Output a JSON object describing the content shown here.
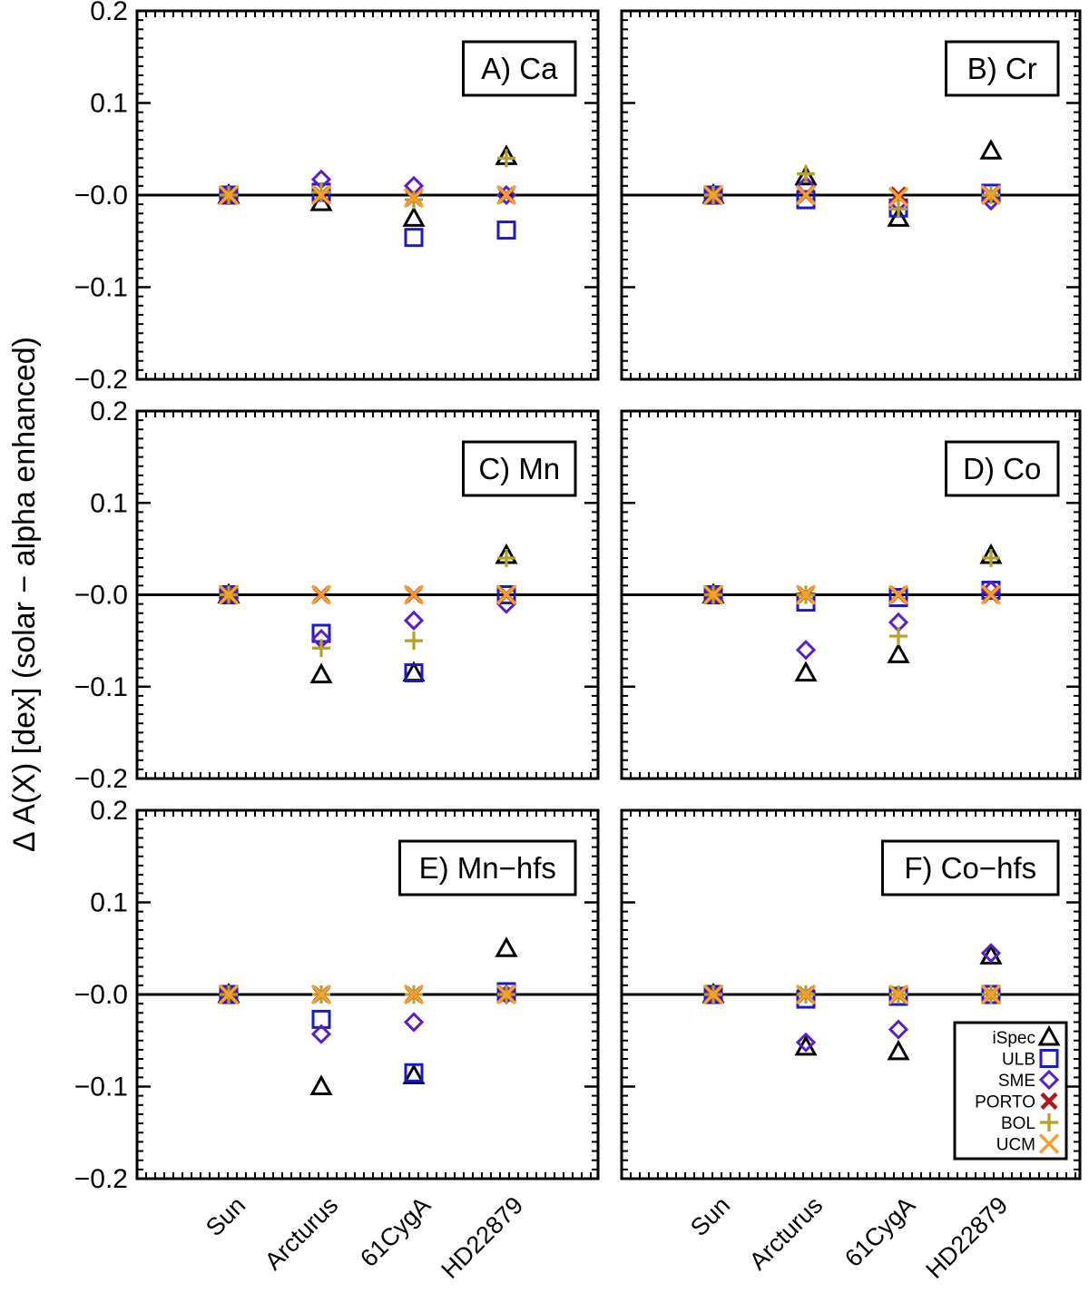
{
  "figure": {
    "ylabel": "Δ A(X) [dex] (solar − alpha enhanced)",
    "xlabels": [
      "Sun",
      "Arcturus",
      "61CygA",
      "HD22879"
    ]
  },
  "legend": [
    {
      "name": "iSpec",
      "marker": "triangle",
      "color": "#000000"
    },
    {
      "name": "ULB",
      "marker": "square",
      "color": "#1a1ac8"
    },
    {
      "name": "SME",
      "marker": "diamond",
      "color": "#5a1ec8"
    },
    {
      "name": "PORTO",
      "marker": "x-bold",
      "color": "#b01818"
    },
    {
      "name": "BOL",
      "marker": "plus",
      "color": "#b8a020"
    },
    {
      "name": "UCM",
      "marker": "x",
      "color": "#f5a030"
    }
  ],
  "chart_data": [
    {
      "type": "scatter",
      "panel": "A) Ca",
      "categories": [
        "Sun",
        "Arcturus",
        "61CygA",
        "HD22879"
      ],
      "ylim": [
        -0.2,
        0.2
      ],
      "yticks": [
        0.2,
        0.1,
        0.0,
        -0.1,
        -0.2
      ],
      "ytick_labels": [
        "0.2",
        "0.1",
        "−0.0",
        "−0.1",
        "−0.2"
      ],
      "reference_line": 0.0,
      "series": [
        {
          "name": "iSpec",
          "values": [
            0.0,
            -0.008,
            -0.025,
            0.042
          ]
        },
        {
          "name": "ULB",
          "values": [
            0.0,
            0.003,
            -0.046,
            -0.038
          ]
        },
        {
          "name": "SME",
          "values": [
            0.0,
            0.017,
            0.01,
            0.0
          ]
        },
        {
          "name": "PORTO",
          "values": [
            0.0,
            0.0,
            -0.003,
            0.0
          ]
        },
        {
          "name": "BOL",
          "values": [
            0.0,
            0.003,
            -0.005,
            0.04
          ]
        },
        {
          "name": "UCM",
          "values": [
            0.0,
            0.0,
            -0.003,
            0.0
          ]
        }
      ]
    },
    {
      "type": "scatter",
      "panel": "B) Cr",
      "categories": [
        "Sun",
        "Arcturus",
        "61CygA",
        "HD22879"
      ],
      "ylim": [
        -0.2,
        0.2
      ],
      "yticks": [
        0.2,
        0.1,
        0.0,
        -0.1,
        -0.2
      ],
      "ytick_labels": [
        "0.2",
        "0.1",
        "−0.0",
        "−0.1",
        "−0.2"
      ],
      "reference_line": 0.0,
      "series": [
        {
          "name": "iSpec",
          "values": [
            0.0,
            0.02,
            -0.025,
            0.048
          ]
        },
        {
          "name": "ULB",
          "values": [
            0.0,
            -0.005,
            -0.014,
            0.002
          ]
        },
        {
          "name": "SME",
          "values": [
            0.0,
            0.01,
            -0.008,
            -0.006
          ]
        },
        {
          "name": "PORTO",
          "values": [
            0.0,
            0.0,
            0.0,
            0.0
          ]
        },
        {
          "name": "BOL",
          "values": [
            0.0,
            0.023,
            -0.015,
            0.0
          ]
        },
        {
          "name": "UCM",
          "values": [
            0.0,
            0.0,
            -0.002,
            0.0
          ]
        }
      ]
    },
    {
      "type": "scatter",
      "panel": "C) Mn",
      "categories": [
        "Sun",
        "Arcturus",
        "61CygA",
        "HD22879"
      ],
      "ylim": [
        -0.2,
        0.2
      ],
      "yticks": [
        0.2,
        0.1,
        0.0,
        -0.1,
        -0.2
      ],
      "ytick_labels": [
        "0.2",
        "0.1",
        "−0.0",
        "−0.1",
        "−0.2"
      ],
      "reference_line": 0.0,
      "series": [
        {
          "name": "iSpec",
          "values": [
            0.0,
            -0.087,
            -0.085,
            0.043
          ]
        },
        {
          "name": "ULB",
          "values": [
            0.0,
            -0.042,
            -0.085,
            0.0
          ]
        },
        {
          "name": "SME",
          "values": [
            0.0,
            -0.048,
            -0.028,
            -0.01
          ]
        },
        {
          "name": "PORTO",
          "values": [
            0.0,
            0.0,
            0.0,
            0.0
          ]
        },
        {
          "name": "BOL",
          "values": [
            0.0,
            -0.058,
            -0.05,
            0.04
          ]
        },
        {
          "name": "UCM",
          "values": [
            0.0,
            0.0,
            0.0,
            0.0
          ]
        }
      ]
    },
    {
      "type": "scatter",
      "panel": "D) Co",
      "categories": [
        "Sun",
        "Arcturus",
        "61CygA",
        "HD22879"
      ],
      "ylim": [
        -0.2,
        0.2
      ],
      "yticks": [
        0.2,
        0.1,
        0.0,
        -0.1,
        -0.2
      ],
      "ytick_labels": [
        "0.2",
        "0.1",
        "−0.0",
        "−0.1",
        "−0.2"
      ],
      "reference_line": 0.0,
      "series": [
        {
          "name": "iSpec",
          "values": [
            0.0,
            -0.085,
            -0.065,
            0.043
          ]
        },
        {
          "name": "ULB",
          "values": [
            0.0,
            -0.008,
            -0.003,
            0.005
          ]
        },
        {
          "name": "SME",
          "values": [
            0.0,
            -0.06,
            -0.03,
            0.005
          ]
        },
        {
          "name": "PORTO",
          "values": [
            0.0,
            0.0,
            0.0,
            0.0
          ]
        },
        {
          "name": "BOL",
          "values": [
            0.0,
            0.0,
            -0.045,
            0.04
          ]
        },
        {
          "name": "UCM",
          "values": [
            0.0,
            0.0,
            0.0,
            0.0
          ]
        }
      ]
    },
    {
      "type": "scatter",
      "panel": "E) Mn−hfs",
      "categories": [
        "Sun",
        "Arcturus",
        "61CygA",
        "HD22879"
      ],
      "ylim": [
        -0.2,
        0.2
      ],
      "yticks": [
        0.2,
        0.1,
        0.0,
        -0.1,
        -0.2
      ],
      "ytick_labels": [
        "0.2",
        "0.1",
        "−0.0",
        "−0.1",
        "−0.2"
      ],
      "reference_line": 0.0,
      "series": [
        {
          "name": "iSpec",
          "values": [
            0.0,
            -0.1,
            -0.088,
            0.05
          ]
        },
        {
          "name": "ULB",
          "values": [
            0.0,
            -0.027,
            -0.085,
            0.003
          ]
        },
        {
          "name": "SME",
          "values": [
            0.0,
            -0.043,
            -0.03,
            0.0
          ]
        },
        {
          "name": "PORTO",
          "values": [
            0.0,
            0.0,
            0.0,
            0.0
          ]
        },
        {
          "name": "BOL",
          "values": [
            0.0,
            0.0,
            0.0,
            0.0
          ]
        },
        {
          "name": "UCM",
          "values": [
            0.0,
            0.0,
            0.0,
            0.0
          ]
        }
      ]
    },
    {
      "type": "scatter",
      "panel": "F) Co−hfs",
      "categories": [
        "Sun",
        "Arcturus",
        "61CygA",
        "HD22879"
      ],
      "ylim": [
        -0.2,
        0.2
      ],
      "yticks": [
        0.2,
        0.1,
        0.0,
        -0.1,
        -0.2
      ],
      "ytick_labels": [
        "0.2",
        "0.1",
        "−0.0",
        "−0.1",
        "−0.2"
      ],
      "reference_line": 0.0,
      "series": [
        {
          "name": "iSpec",
          "values": [
            0.0,
            -0.057,
            -0.062,
            0.042
          ]
        },
        {
          "name": "ULB",
          "values": [
            0.0,
            -0.005,
            -0.002,
            0.0
          ]
        },
        {
          "name": "SME",
          "values": [
            0.0,
            -0.052,
            -0.038,
            0.045
          ]
        },
        {
          "name": "PORTO",
          "values": [
            0.0,
            0.0,
            0.0,
            0.0
          ]
        },
        {
          "name": "BOL",
          "values": [
            0.0,
            0.0,
            0.0,
            0.0
          ]
        },
        {
          "name": "UCM",
          "values": [
            0.0,
            0.0,
            0.0,
            0.0
          ]
        }
      ]
    }
  ]
}
